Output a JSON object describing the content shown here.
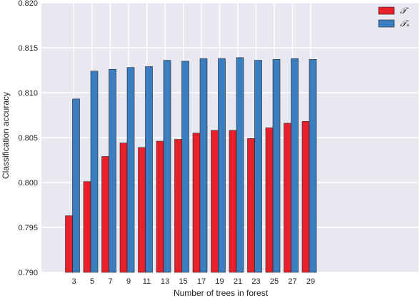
{
  "chart_data": {
    "type": "bar",
    "title": "",
    "xlabel": "Number of trees in forest",
    "ylabel": "Classification accuracy",
    "ylim": [
      0.79,
      0.82
    ],
    "yticks": [
      "0.790",
      "0.795",
      "0.800",
      "0.805",
      "0.810",
      "0.815",
      "0.820"
    ],
    "categories": [
      "3",
      "5",
      "7",
      "9",
      "11",
      "13",
      "15",
      "17",
      "19",
      "21",
      "23",
      "25",
      "27",
      "29"
    ],
    "grid": true,
    "legend_position": "top-right",
    "series": [
      {
        "name": "𝒯",
        "color": "#e8202a",
        "values": [
          0.7963,
          0.8001,
          0.8029,
          0.8044,
          0.8039,
          0.8046,
          0.8048,
          0.8055,
          0.8058,
          0.8058,
          0.8049,
          0.8061,
          0.8066,
          0.8068
        ]
      },
      {
        "name": "𝒯ₛ",
        "color": "#3a7dc0",
        "values": [
          0.8093,
          0.8124,
          0.8126,
          0.8128,
          0.8129,
          0.8136,
          0.8135,
          0.8138,
          0.8138,
          0.8139,
          0.8136,
          0.8137,
          0.8138,
          0.8137
        ]
      }
    ]
  }
}
